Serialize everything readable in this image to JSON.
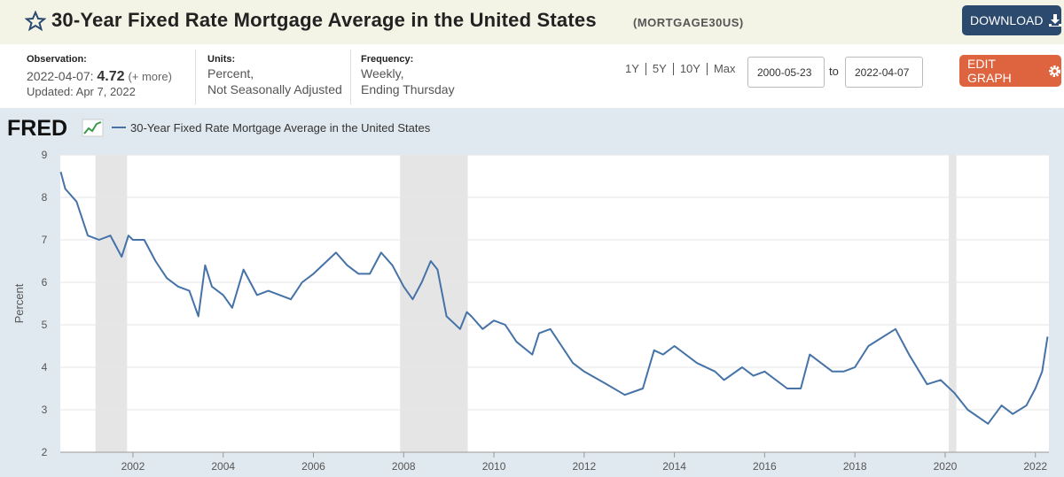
{
  "header": {
    "title": "30-Year Fixed Rate Mortgage Average in the United States",
    "series_id": "(MORTGAGE30US)",
    "download": "DOWNLOAD"
  },
  "info": {
    "observation_label": "Observation:",
    "observation_date": "2022-04-07:",
    "observation_value": "4.72",
    "more": "(+ more)",
    "updated": "Updated: Apr 7, 2022",
    "units_label": "Units:",
    "units": [
      "Percent,",
      "Not Seasonally Adjusted"
    ],
    "frequency_label": "Frequency:",
    "frequency": [
      "Weekly,",
      "Ending Thursday"
    ]
  },
  "controls": {
    "ranges": [
      "1Y",
      "5Y",
      "10Y",
      "Max"
    ],
    "start": "2000-05-23",
    "to": "to",
    "end": "2022-04-07",
    "edit": "EDIT GRAPH"
  },
  "logo": "FRED",
  "chart_data": {
    "type": "line",
    "ylabel": "Percent",
    "x": [
      2000.4,
      2000.5,
      2000.75,
      2001.0,
      2001.25,
      2001.5,
      2001.75,
      2001.9,
      2002.0,
      2002.25,
      2002.5,
      2002.75,
      2003.0,
      2003.25,
      2003.45,
      2003.6,
      2003.75,
      2004.0,
      2004.2,
      2004.45,
      2004.75,
      2005.0,
      2005.5,
      2005.75,
      2006.0,
      2006.5,
      2006.75,
      2007.0,
      2007.25,
      2007.5,
      2007.75,
      2008.0,
      2008.2,
      2008.4,
      2008.6,
      2008.75,
      2008.95,
      2009.25,
      2009.4,
      2009.5,
      2009.75,
      2010.0,
      2010.25,
      2010.5,
      2010.85,
      2011.0,
      2011.25,
      2011.5,
      2011.75,
      2012.0,
      2012.5,
      2012.9,
      2013.3,
      2013.55,
      2013.75,
      2014.0,
      2014.5,
      2014.9,
      2015.1,
      2015.5,
      2015.75,
      2016.0,
      2016.5,
      2016.8,
      2017.0,
      2017.5,
      2017.75,
      2018.0,
      2018.3,
      2018.9,
      2019.2,
      2019.6,
      2019.9,
      2020.2,
      2020.5,
      2020.95,
      2021.25,
      2021.5,
      2021.8,
      2022.0,
      2022.15,
      2022.27
    ],
    "series": [
      {
        "name": "30-Year Fixed Rate Mortgage Average in the United States",
        "color": "#4572a7",
        "values": [
          8.6,
          8.2,
          7.9,
          7.1,
          7.0,
          7.1,
          6.6,
          7.1,
          7.0,
          7.0,
          6.5,
          6.1,
          5.9,
          5.8,
          5.2,
          6.4,
          5.9,
          5.7,
          5.4,
          6.3,
          5.7,
          5.8,
          5.6,
          6.0,
          6.2,
          6.7,
          6.4,
          6.2,
          6.2,
          6.7,
          6.4,
          5.9,
          5.6,
          6.0,
          6.5,
          6.3,
          5.2,
          4.9,
          5.3,
          5.2,
          4.9,
          5.1,
          5.0,
          4.6,
          4.3,
          4.8,
          4.9,
          4.5,
          4.1,
          3.9,
          3.6,
          3.35,
          3.5,
          4.4,
          4.3,
          4.5,
          4.1,
          3.9,
          3.7,
          4.0,
          3.8,
          3.9,
          3.5,
          3.5,
          4.3,
          3.9,
          3.9,
          4.0,
          4.5,
          4.9,
          4.3,
          3.6,
          3.7,
          3.4,
          3.0,
          2.67,
          3.1,
          2.9,
          3.1,
          3.5,
          3.9,
          4.72
        ]
      }
    ],
    "recessions": [
      [
        2001.17,
        2001.87
      ],
      [
        2007.92,
        2009.42
      ],
      [
        2020.08,
        2020.25
      ]
    ],
    "recession_color": "#e5e5e5",
    "xlim": [
      2000.39,
      2022.3
    ],
    "xticks": [
      2002,
      2004,
      2006,
      2008,
      2010,
      2012,
      2014,
      2016,
      2018,
      2020,
      2022
    ],
    "ylim": [
      2,
      9
    ],
    "yticks": [
      2,
      3,
      4,
      5,
      6,
      7,
      8,
      9
    ],
    "grid": true
  }
}
